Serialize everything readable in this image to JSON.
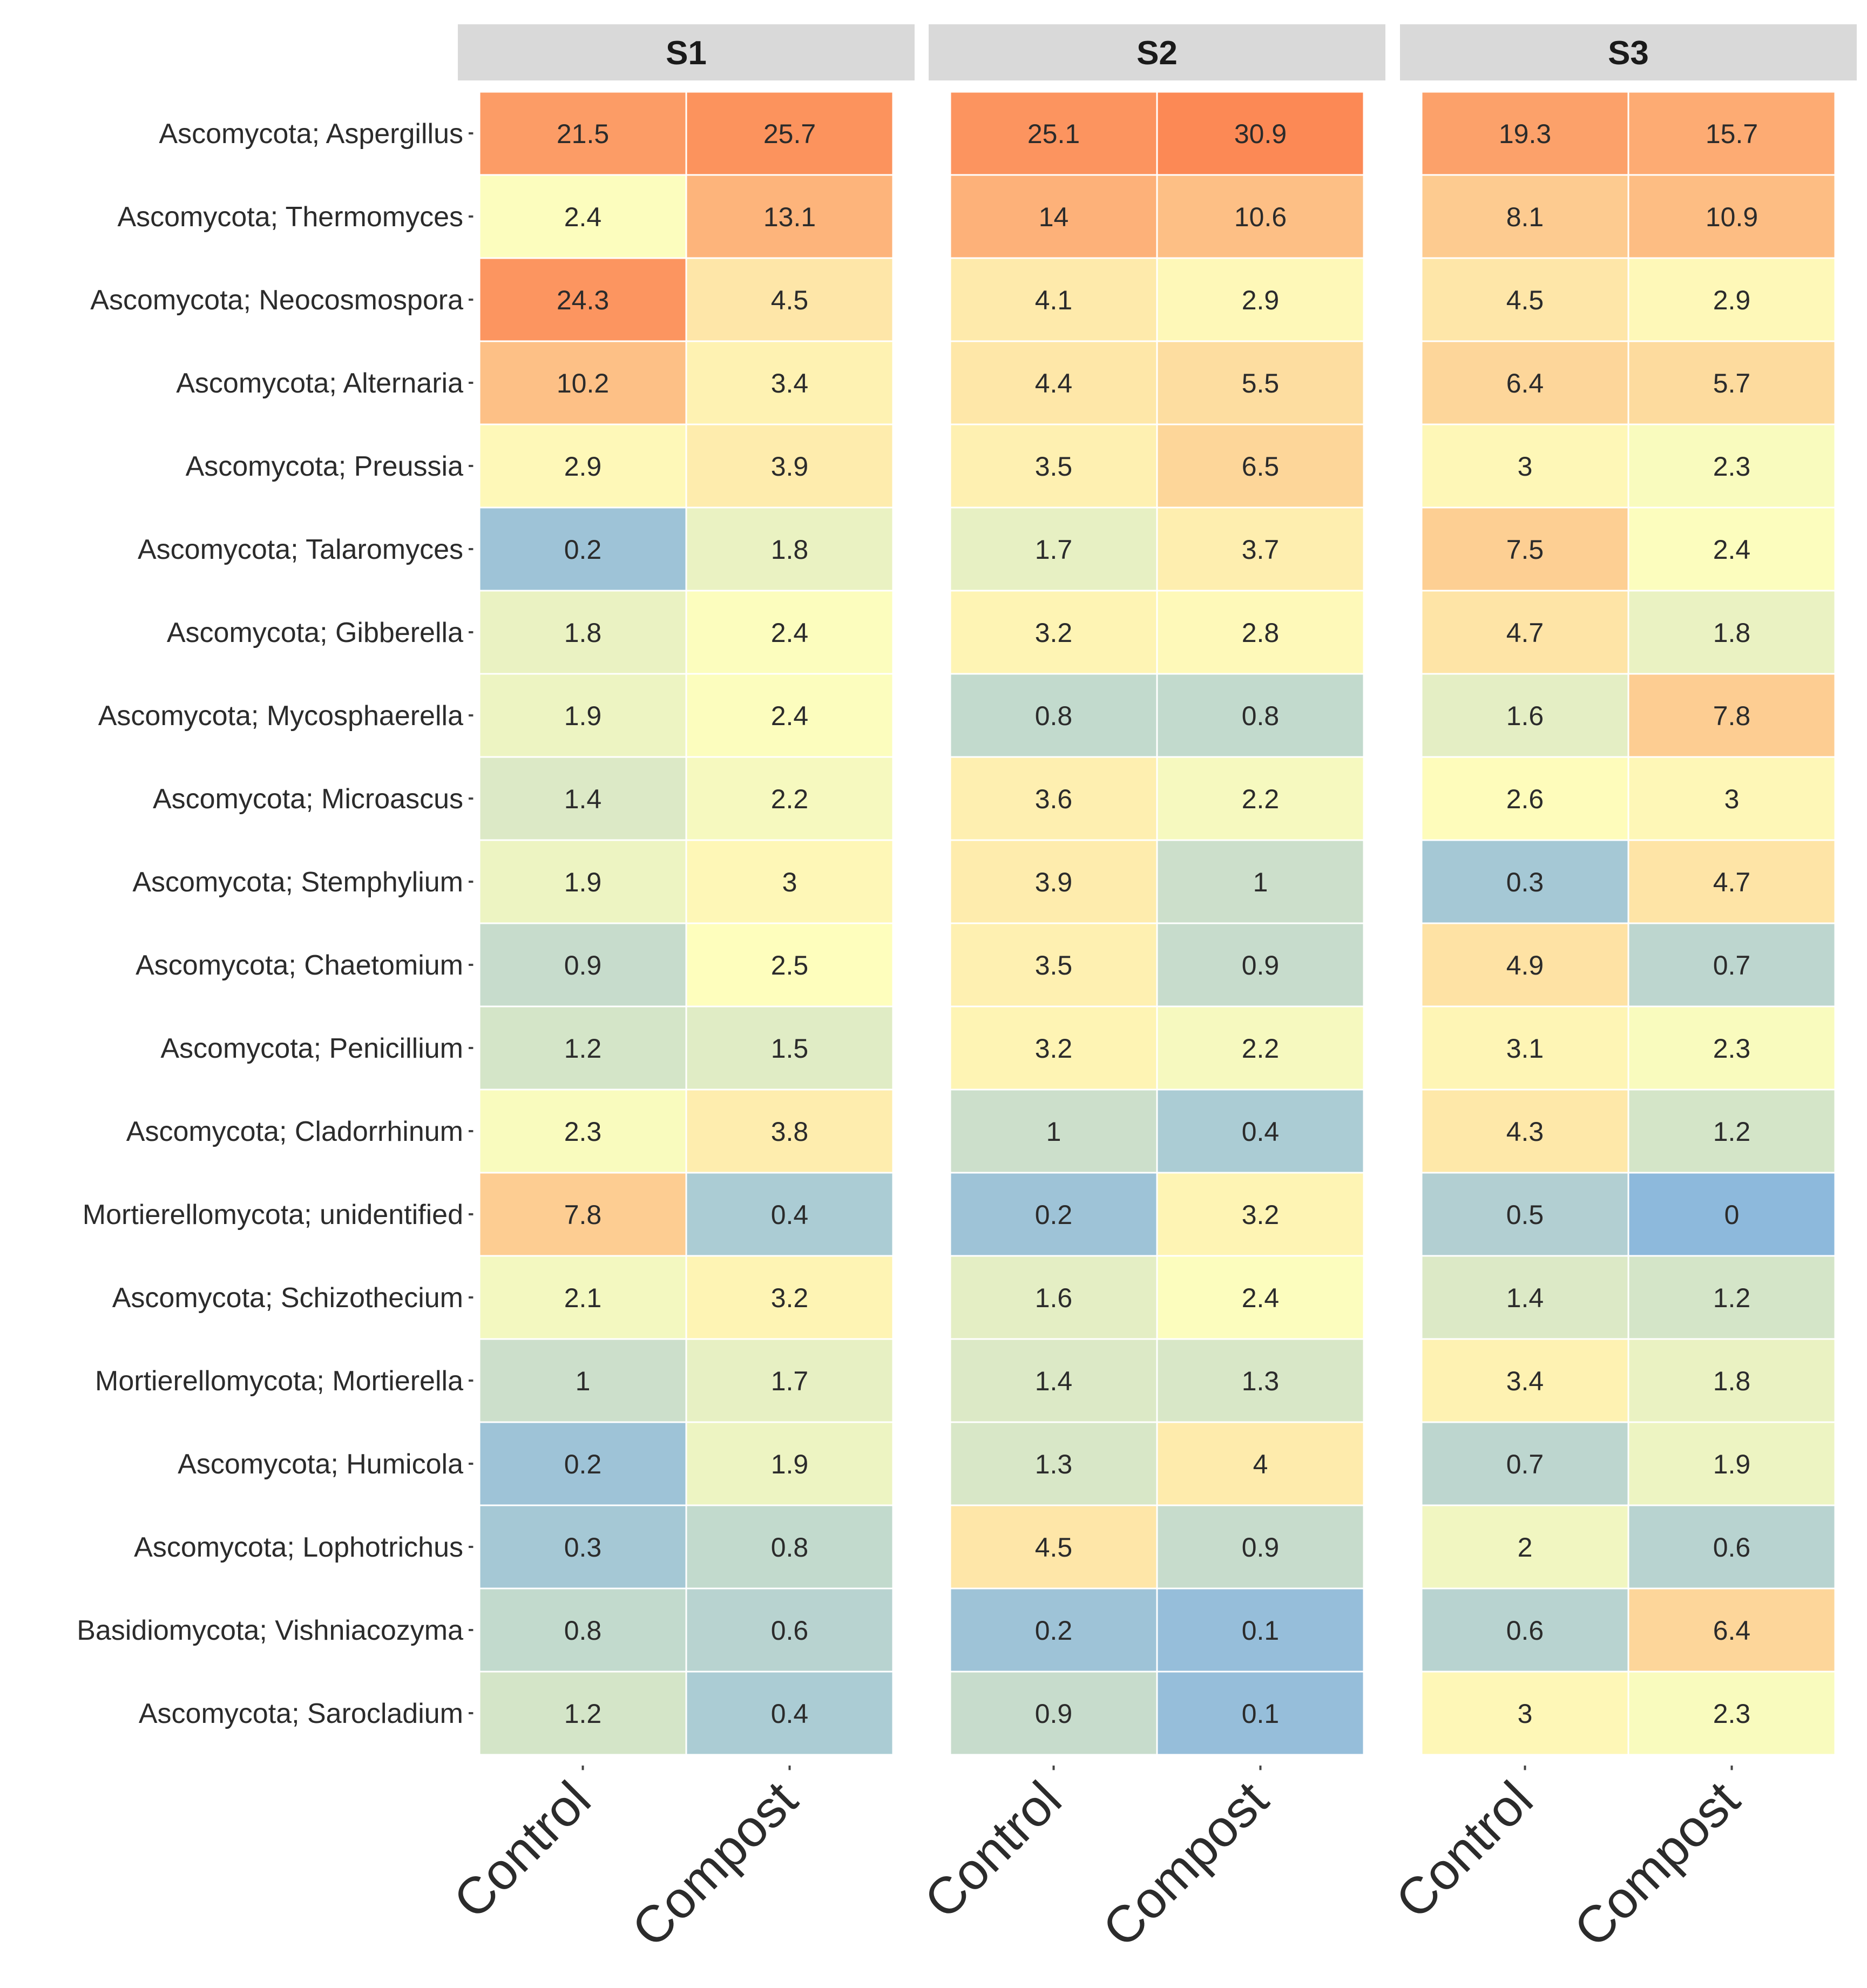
{
  "chart_data": {
    "type": "heatmap",
    "panels": [
      "S1",
      "S2",
      "S3"
    ],
    "treatments": [
      "Control",
      "Compost"
    ],
    "rows": [
      "Ascomycota; Aspergillus",
      "Ascomycota; Thermomyces",
      "Ascomycota; Neocosmospora",
      "Ascomycota; Alternaria",
      "Ascomycota; Preussia",
      "Ascomycota; Talaromyces",
      "Ascomycota; Gibberella",
      "Ascomycota; Mycosphaerella",
      "Ascomycota; Microascus",
      "Ascomycota; Stemphylium",
      "Ascomycota; Chaetomium",
      "Ascomycota; Penicillium",
      "Ascomycota; Cladorrhinum",
      "Mortierellomycota; unidentified",
      "Ascomycota; Schizothecium",
      "Mortierellomycota; Mortierella",
      "Ascomycota; Humicola",
      "Ascomycota; Lophotrichus",
      "Basidiomycota; Vishniacozyma",
      "Ascomycota; Sarocladium"
    ],
    "values": [
      [
        21.5,
        25.7,
        25.1,
        30.9,
        19.3,
        15.7
      ],
      [
        2.4,
        13.1,
        14,
        10.6,
        8.1,
        10.9
      ],
      [
        24.3,
        4.5,
        4.1,
        2.9,
        4.5,
        2.9
      ],
      [
        10.2,
        3.4,
        4.4,
        5.5,
        6.4,
        5.7
      ],
      [
        2.9,
        3.9,
        3.5,
        6.5,
        3,
        2.3
      ],
      [
        0.2,
        1.8,
        1.7,
        3.7,
        7.5,
        2.4
      ],
      [
        1.8,
        2.4,
        3.2,
        2.8,
        4.7,
        1.8
      ],
      [
        1.9,
        2.4,
        0.8,
        0.8,
        1.6,
        7.8
      ],
      [
        1.4,
        2.2,
        3.6,
        2.2,
        2.6,
        3
      ],
      [
        1.9,
        3,
        3.9,
        1,
        0.3,
        4.7
      ],
      [
        0.9,
        2.5,
        3.5,
        0.9,
        4.9,
        0.7
      ],
      [
        1.2,
        1.5,
        3.2,
        2.2,
        3.1,
        2.3
      ],
      [
        2.3,
        3.8,
        1,
        0.4,
        4.3,
        1.2
      ],
      [
        7.8,
        0.4,
        0.2,
        3.2,
        0.5,
        0
      ],
      [
        2.1,
        3.2,
        1.6,
        2.4,
        1.4,
        1.2
      ],
      [
        1,
        1.7,
        1.4,
        1.3,
        3.4,
        1.8
      ],
      [
        0.2,
        1.9,
        1.3,
        4,
        0.7,
        1.9
      ],
      [
        0.3,
        0.8,
        4.5,
        0.9,
        2,
        0.6
      ],
      [
        0.8,
        0.6,
        0.2,
        0.1,
        0.6,
        6.4
      ],
      [
        1.2,
        0.4,
        0.9,
        0.1,
        3,
        2.3
      ]
    ],
    "column_order": "S1 Control, S1 Compost, S2 Control, S2 Compost, S3 Control, S3 Compost",
    "color_scale": {
      "type": "log-diverging",
      "low": "#8db9dc",
      "mid": "#fefebd",
      "high": "#fc8955"
    },
    "title": "",
    "xlabel": "",
    "ylabel": ""
  }
}
